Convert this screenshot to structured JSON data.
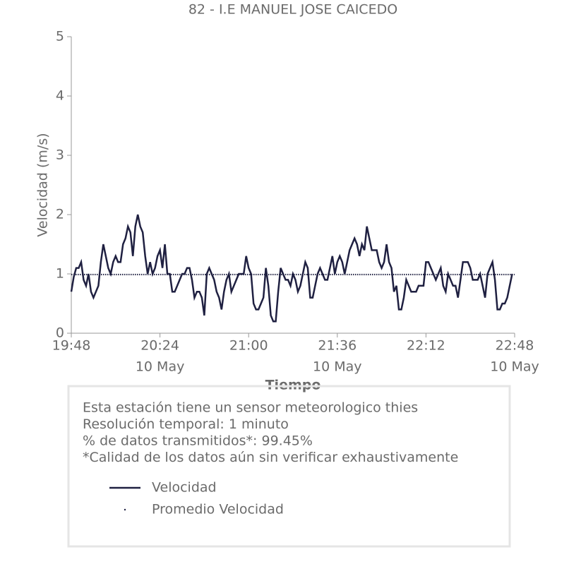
{
  "chart_data": {
    "type": "line",
    "title": "82 - I.E MANUEL JOSE CAICEDO",
    "xlabel": "Tiempo",
    "ylabel": "Velocidad (m/s)",
    "x": [
      "19:48",
      "19:49",
      "19:50",
      "19:51",
      "19:52",
      "19:53",
      "19:54",
      "19:55",
      "19:56",
      "19:57",
      "19:58",
      "19:59",
      "20:00",
      "20:01",
      "20:02",
      "20:03",
      "20:04",
      "20:05",
      "20:06",
      "20:07",
      "20:08",
      "20:09",
      "20:10",
      "20:11",
      "20:12",
      "20:13",
      "20:14",
      "20:15",
      "20:16",
      "20:17",
      "20:18",
      "20:19",
      "20:20",
      "20:21",
      "20:22",
      "20:23",
      "20:24",
      "20:25",
      "20:26",
      "20:27",
      "20:28",
      "20:29",
      "20:30",
      "20:31",
      "20:32",
      "20:33",
      "20:34",
      "20:35",
      "20:36",
      "20:37",
      "20:38",
      "20:39",
      "20:40",
      "20:41",
      "20:42",
      "20:43",
      "20:44",
      "20:45",
      "20:46",
      "20:47",
      "20:48",
      "20:49",
      "20:50",
      "20:51",
      "20:52",
      "20:53",
      "20:54",
      "20:55",
      "20:56",
      "20:57",
      "20:58",
      "20:59",
      "21:00",
      "21:01",
      "21:02",
      "21:03",
      "21:04",
      "21:05",
      "21:06",
      "21:07",
      "21:08",
      "21:09",
      "21:10",
      "21:11",
      "21:12",
      "21:13",
      "21:14",
      "21:15",
      "21:16",
      "21:17",
      "21:18",
      "21:19",
      "21:20",
      "21:21",
      "21:22",
      "21:23",
      "21:24",
      "21:25",
      "21:26",
      "21:27",
      "21:28",
      "21:29",
      "21:30",
      "21:31",
      "21:32",
      "21:33",
      "21:34",
      "21:35",
      "21:36",
      "21:37",
      "21:38",
      "21:39",
      "21:40",
      "21:41",
      "21:42",
      "21:43",
      "21:44",
      "21:45",
      "21:46",
      "21:47",
      "21:48",
      "21:49",
      "21:50",
      "21:51",
      "21:52",
      "21:53",
      "21:54",
      "21:55",
      "21:56",
      "21:57",
      "21:58",
      "21:59",
      "22:00",
      "22:01",
      "22:02",
      "22:03",
      "22:04",
      "22:05",
      "22:06",
      "22:07",
      "22:08",
      "22:09",
      "22:10",
      "22:11",
      "22:12",
      "22:13",
      "22:14",
      "22:15",
      "22:16",
      "22:17",
      "22:18",
      "22:19",
      "22:20",
      "22:21",
      "22:22",
      "22:23",
      "22:24",
      "22:25",
      "22:26",
      "22:27",
      "22:28",
      "22:29",
      "22:30",
      "22:31",
      "22:32",
      "22:33",
      "22:34",
      "22:35",
      "22:36",
      "22:37",
      "22:38",
      "22:39",
      "22:40",
      "22:41",
      "22:42",
      "22:43",
      "22:44",
      "22:45",
      "22:46",
      "22:47"
    ],
    "series": [
      {
        "name": "Velocidad",
        "color": "#1f2041",
        "values": [
          0.7,
          0.95,
          1.1,
          1.1,
          1.2,
          0.9,
          0.8,
          1.0,
          0.7,
          0.6,
          0.7,
          0.8,
          1.2,
          1.5,
          1.3,
          1.1,
          1.0,
          1.2,
          1.3,
          1.2,
          1.2,
          1.5,
          1.6,
          1.8,
          1.7,
          1.3,
          1.8,
          2.0,
          1.8,
          1.7,
          1.3,
          1.0,
          1.2,
          1.0,
          1.1,
          1.3,
          1.4,
          1.1,
          1.5,
          1.0,
          1.0,
          0.7,
          0.7,
          0.8,
          0.9,
          1.0,
          1.0,
          1.1,
          1.1,
          0.9,
          0.6,
          0.7,
          0.7,
          0.6,
          0.3,
          1.0,
          1.1,
          1.0,
          0.9,
          0.7,
          0.6,
          0.4,
          0.7,
          0.9,
          1.0,
          0.7,
          0.8,
          0.9,
          1.0,
          1.0,
          1.0,
          1.3,
          1.1,
          1.0,
          0.5,
          0.4,
          0.4,
          0.5,
          0.6,
          1.1,
          0.8,
          0.3,
          0.2,
          0.2,
          0.7,
          1.1,
          1.0,
          0.9,
          0.9,
          0.8,
          1.0,
          0.9,
          0.7,
          0.8,
          1.0,
          1.2,
          1.1,
          0.6,
          0.6,
          0.8,
          1.0,
          1.1,
          1.0,
          0.9,
          0.9,
          1.1,
          1.3,
          1.0,
          1.2,
          1.3,
          1.2,
          1.0,
          1.2,
          1.4,
          1.5,
          1.6,
          1.5,
          1.3,
          1.5,
          1.4,
          1.8,
          1.6,
          1.4,
          1.4,
          1.4,
          1.2,
          1.1,
          1.2,
          1.5,
          1.2,
          1.1,
          0.7,
          0.8,
          0.4,
          0.4,
          0.6,
          0.9,
          0.8,
          0.7,
          0.7,
          0.7,
          0.8,
          0.8,
          0.8,
          1.2,
          1.2,
          1.1,
          1.0,
          0.9,
          1.0,
          1.1,
          0.8,
          0.7,
          1.0,
          0.9,
          0.8,
          0.8,
          0.6,
          0.9,
          1.2,
          1.2,
          1.2,
          1.1,
          0.9,
          0.9,
          0.9,
          1.0,
          0.8,
          0.6,
          1.0,
          1.1,
          1.2,
          0.9,
          0.4,
          0.4,
          0.5,
          0.5,
          0.6,
          0.8,
          1.0
        ]
      },
      {
        "name": "Promedio Velocidad",
        "color": "#1f2041",
        "style": "dotted",
        "value": 0.99
      }
    ],
    "xlim": [
      "19:48",
      "22:48"
    ],
    "xticks": [
      "19:48",
      "20:24",
      "21:00",
      "21:36",
      "22:12",
      "22:48"
    ],
    "xtick_dates": [
      {
        "value": "20:24",
        "label": "10 May"
      },
      {
        "value": "21:36",
        "label": "10 May"
      },
      {
        "value": "22:48",
        "label": "10 May"
      }
    ],
    "ylim": [
      0,
      5
    ],
    "yticks": [
      0,
      1,
      2,
      3,
      4,
      5
    ],
    "notes": [
      "Esta estación tiene un sensor meteorologico thies",
      "Resolución temporal: 1 minuto",
      "% de datos transmitidos*: 99.45%",
      "*Calidad de los datos aún sin verificar exhaustivamente"
    ]
  }
}
